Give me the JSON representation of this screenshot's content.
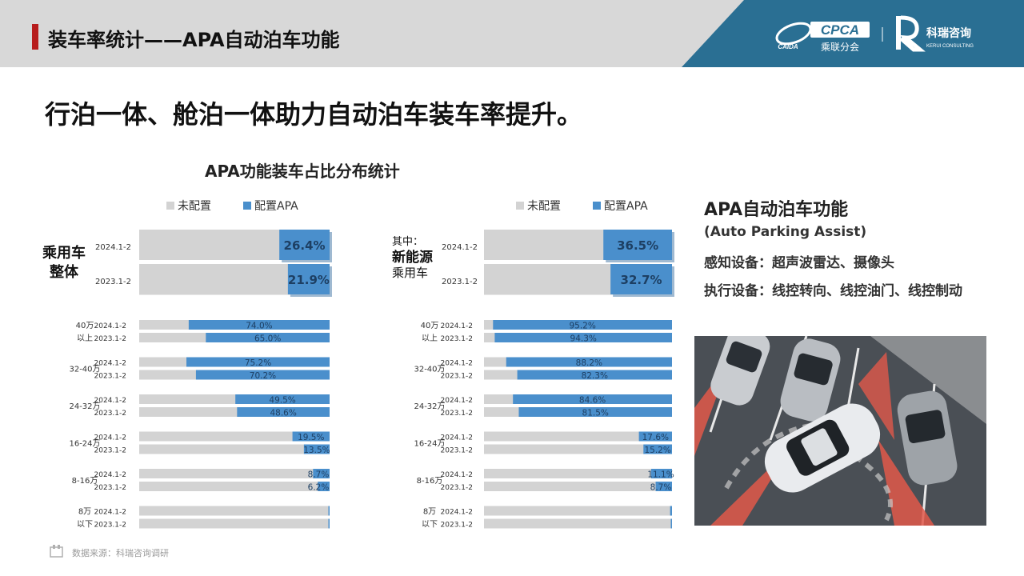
{
  "header": {
    "title": "装车率统计——APA自动泊车功能",
    "logo_cpca": "CPCA",
    "logo_cpca_sub": "乘联分会",
    "logo_cpca_mark": "CAIDA",
    "logo_kerui": "科瑞咨询",
    "logo_kerui_sub": "KERUI CONSULTING"
  },
  "headline": "行泊一体、舱泊一体助力自动泊车装车率提升。",
  "chart_title": "APA功能装车占比分布统计",
  "legend": {
    "unconfigured": "未配置",
    "configured": "配置APA"
  },
  "colors": {
    "configured": "#4a8fcc",
    "unconfigured": "#d3d3d3",
    "header_accent": "#b71c1c",
    "brand_band": "#2a6f93"
  },
  "info": {
    "title": "APA自动泊车功能",
    "subtitle": "(Auto Parking Assist)",
    "sensing": "感知设备：超声波雷达、摄像头",
    "actuation": "执行设备：线控转向、线控油门、线控制动"
  },
  "footer_note": "数据来源：科瑞咨询调研",
  "chart_data": [
    {
      "type": "bar",
      "group_label": [
        "乘用车",
        "整体"
      ],
      "categories": [
        "2024.1-2",
        "2023.1-2"
      ],
      "series": [
        {
          "name": "配置APA",
          "values": [
            26.4,
            21.9
          ]
        }
      ],
      "value_labels": [
        "26.4%",
        "21.9%"
      ]
    },
    {
      "type": "bar",
      "group_label": [
        "其中：",
        "新能源",
        "乘用车"
      ],
      "categories": [
        "2024.1-2",
        "2023.1-2"
      ],
      "series": [
        {
          "name": "配置APA",
          "values": [
            36.5,
            32.7
          ]
        }
      ],
      "value_labels": [
        "36.5%",
        "32.7%"
      ]
    },
    {
      "type": "bar",
      "series_name": "配置APA",
      "groups": [
        {
          "label": [
            "40万",
            "以上"
          ],
          "periods": [
            "2024.1-2",
            "2023.1-2"
          ],
          "values": [
            74.0,
            65.0
          ],
          "value_labels": [
            "74.0%",
            "65.0%"
          ]
        },
        {
          "label": [
            "32-40万"
          ],
          "periods": [
            "2024.1-2",
            "2023.1-2"
          ],
          "values": [
            75.2,
            70.2
          ],
          "value_labels": [
            "75.2%",
            "70.2%"
          ]
        },
        {
          "label": [
            "24-32万"
          ],
          "periods": [
            "2024.1-2",
            "2023.1-2"
          ],
          "values": [
            49.5,
            48.6
          ],
          "value_labels": [
            "49.5%",
            "48.6%"
          ]
        },
        {
          "label": [
            "16-24万"
          ],
          "periods": [
            "2024.1-2",
            "2023.1-2"
          ],
          "values": [
            19.5,
            13.5
          ],
          "value_labels": [
            "19.5%",
            "13.5%"
          ]
        },
        {
          "label": [
            "8-16万"
          ],
          "periods": [
            "2024.1-2",
            "2023.1-2"
          ],
          "values": [
            8.7,
            6.2
          ],
          "value_labels": [
            "8.7%",
            "6.2%"
          ]
        },
        {
          "label": [
            "8万",
            "以下"
          ],
          "periods": [
            "2024.1-2",
            "2023.1-2"
          ],
          "values": [
            0.5,
            0.5
          ],
          "value_labels": [
            "",
            ""
          ]
        }
      ]
    },
    {
      "type": "bar",
      "series_name": "配置APA",
      "groups": [
        {
          "label": [
            "40万",
            "以上"
          ],
          "periods": [
            "2024.1-2",
            "2023.1-2"
          ],
          "values": [
            95.2,
            94.3
          ],
          "value_labels": [
            "95.2%",
            "94.3%"
          ]
        },
        {
          "label": [
            "32-40万"
          ],
          "periods": [
            "2024.1-2",
            "2023.1-2"
          ],
          "values": [
            88.2,
            82.3
          ],
          "value_labels": [
            "88.2%",
            "82.3%"
          ]
        },
        {
          "label": [
            "24-32万"
          ],
          "periods": [
            "2024.1-2",
            "2023.1-2"
          ],
          "values": [
            84.6,
            81.5
          ],
          "value_labels": [
            "84.6%",
            "81.5%"
          ]
        },
        {
          "label": [
            "16-24万"
          ],
          "periods": [
            "2024.1-2",
            "2023.1-2"
          ],
          "values": [
            17.6,
            15.2
          ],
          "value_labels": [
            "17.6%",
            "15.2%"
          ]
        },
        {
          "label": [
            "8-16万"
          ],
          "periods": [
            "2024.1-2",
            "2023.1-2"
          ],
          "values": [
            11.1,
            8.7
          ],
          "value_labels": [
            "11.1%",
            "8.7%"
          ]
        },
        {
          "label": [
            "8万",
            "以下"
          ],
          "periods": [
            "2024.1-2",
            "2023.1-2"
          ],
          "values": [
            1.0,
            0.5
          ],
          "value_labels": [
            "",
            ""
          ]
        }
      ]
    }
  ]
}
